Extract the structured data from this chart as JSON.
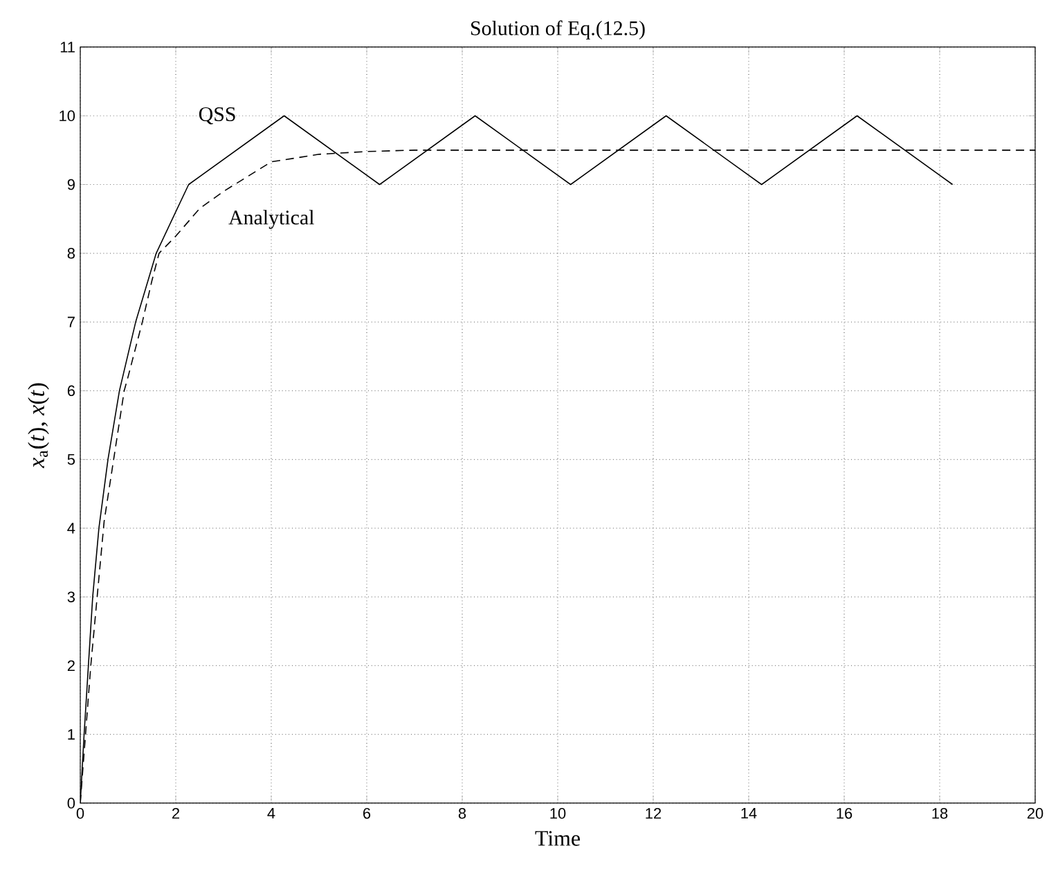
{
  "chart_data": {
    "type": "line",
    "title": "Solution of Eq.(12.5)",
    "xlabel": "Time",
    "ylabel": "*x*$_{a}$(*t*), *x*(*t*)",
    "xlim": [
      0,
      20
    ],
    "ylim": [
      0,
      11
    ],
    "xticks": [
      0,
      2,
      4,
      6,
      8,
      10,
      12,
      14,
      16,
      18,
      20
    ],
    "yticks": [
      0,
      1,
      2,
      3,
      4,
      5,
      6,
      7,
      8,
      9,
      10,
      11
    ],
    "grid": true,
    "legend": false,
    "marker": "none",
    "series": [
      {
        "name": "QSS",
        "color": "#000000",
        "line_style": "solid",
        "x": [
          0,
          0.08,
          0.17,
          0.26,
          0.39,
          0.58,
          0.82,
          1.16,
          1.59,
          2.27,
          4.27,
          6.27,
          8.27,
          10.27,
          12.27,
          14.27,
          16.27,
          18.27
        ],
        "values": [
          0,
          1,
          2,
          3,
          4,
          5,
          6,
          7,
          8,
          9,
          10,
          9,
          10,
          9,
          10,
          9,
          10,
          9
        ]
      },
      {
        "name": "Analytical",
        "color": "#000000",
        "line_style": "dashed",
        "x": [
          0,
          0.22,
          0.5,
          0.92,
          1.0,
          1.3,
          1.5,
          1.65,
          2.0,
          2.5,
          3.0,
          4.0,
          5.0,
          6.0,
          7.0,
          8.0,
          10.0,
          12.0,
          14.0,
          16.0,
          18.0,
          20.0
        ],
        "values": [
          0,
          2,
          4.1,
          6,
          6.2,
          7,
          7.6,
          8,
          8.25,
          8.65,
          8.9,
          9.33,
          9.44,
          9.48,
          9.5,
          9.5,
          9.5,
          9.5,
          9.5,
          9.5,
          9.5,
          9.5
        ]
      }
    ]
  }
}
